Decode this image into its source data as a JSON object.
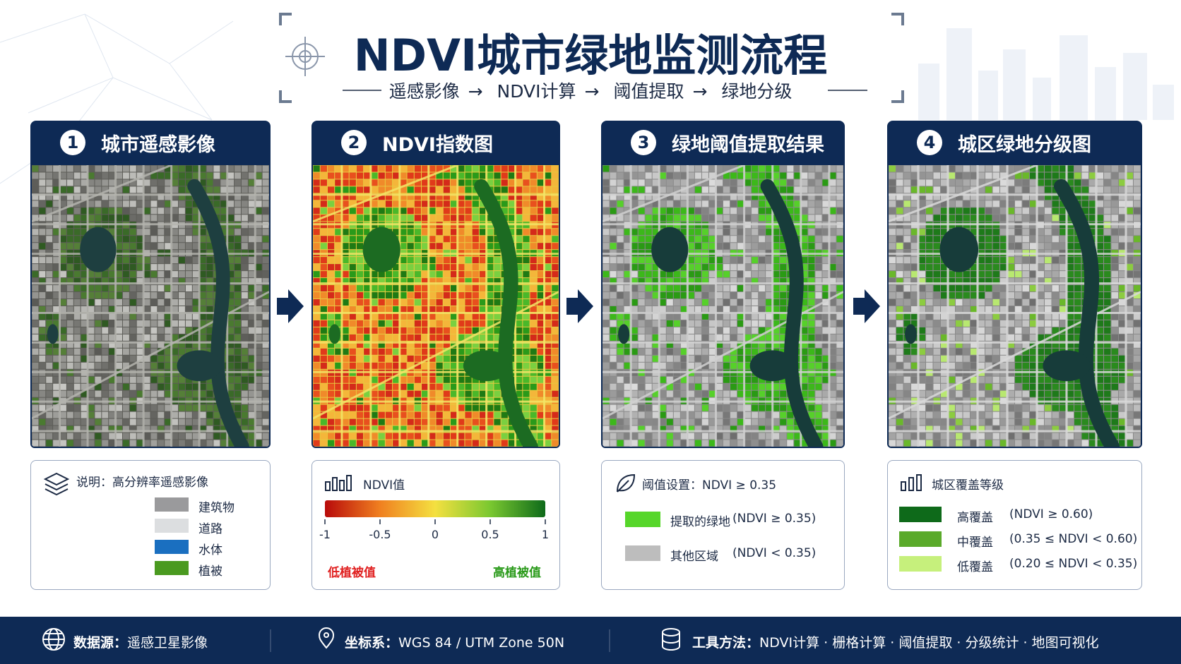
{
  "header": {
    "title": "NDVI城市绿地监测流程",
    "flow": [
      "遥感影像",
      "NDVI计算",
      "阈值提取",
      "绿地分级"
    ]
  },
  "panels": [
    {
      "number": 1,
      "title": "城市遥感影像",
      "legend": {
        "heading": "说明：高分辨率遥感影像",
        "items": [
          {
            "label": "建筑物",
            "color": "#9a9a9c"
          },
          {
            "label": "道路",
            "color": "#dcdee0"
          },
          {
            "label": "水体",
            "color": "#1a6fc0"
          },
          {
            "label": "植被",
            "color": "#4a9a20"
          }
        ]
      }
    },
    {
      "number": 2,
      "title": "NDVI指数图",
      "legend": {
        "heading": "NDVI值",
        "colorbar": {
          "lim": [
            -1,
            1
          ],
          "ticks": [
            -1,
            -0.5,
            0,
            0.5,
            1
          ],
          "colors": [
            "#b80a0a",
            "#f08020",
            "#f4e040",
            "#7ac830",
            "#0e6a1a"
          ]
        },
        "low": "低植被值",
        "high": "高植被值"
      }
    },
    {
      "number": 3,
      "title": "绿地阈值提取结果",
      "legend": {
        "heading": "阈值设置：NDVI ≥ 0.35",
        "items": [
          {
            "label": "提取的绿地",
            "note": "(NDVI ≥ 0.35)",
            "color": "#56d62a"
          },
          {
            "label": "其他区域",
            "note": "(NDVI < 0.35)",
            "color": "#bdbdbd"
          }
        ]
      }
    },
    {
      "number": 4,
      "title": "城区绿地分级图",
      "legend": {
        "heading": "城区覆盖等级",
        "items": [
          {
            "label": "高覆盖",
            "note": "(NDVI ≥ 0.60)",
            "color": "#0e6a1a"
          },
          {
            "label": "中覆盖",
            "note": "(0.35 ≤ NDVI < 0.60)",
            "color": "#5aaa2a"
          },
          {
            "label": "低覆盖",
            "note": "(0.20 ≤ NDVI < 0.35)",
            "color": "#c6f07c"
          }
        ]
      }
    }
  ],
  "footer": [
    {
      "label": "数据源：",
      "value": "遥感卫星影像"
    },
    {
      "label": "坐标系：",
      "value": "WGS 84 / UTM Zone 50N"
    },
    {
      "label": "工具方法：",
      "value": "NDVI计算 · 栅格计算 · 阈值提取 · 分级统计 · 地图可视化"
    }
  ]
}
